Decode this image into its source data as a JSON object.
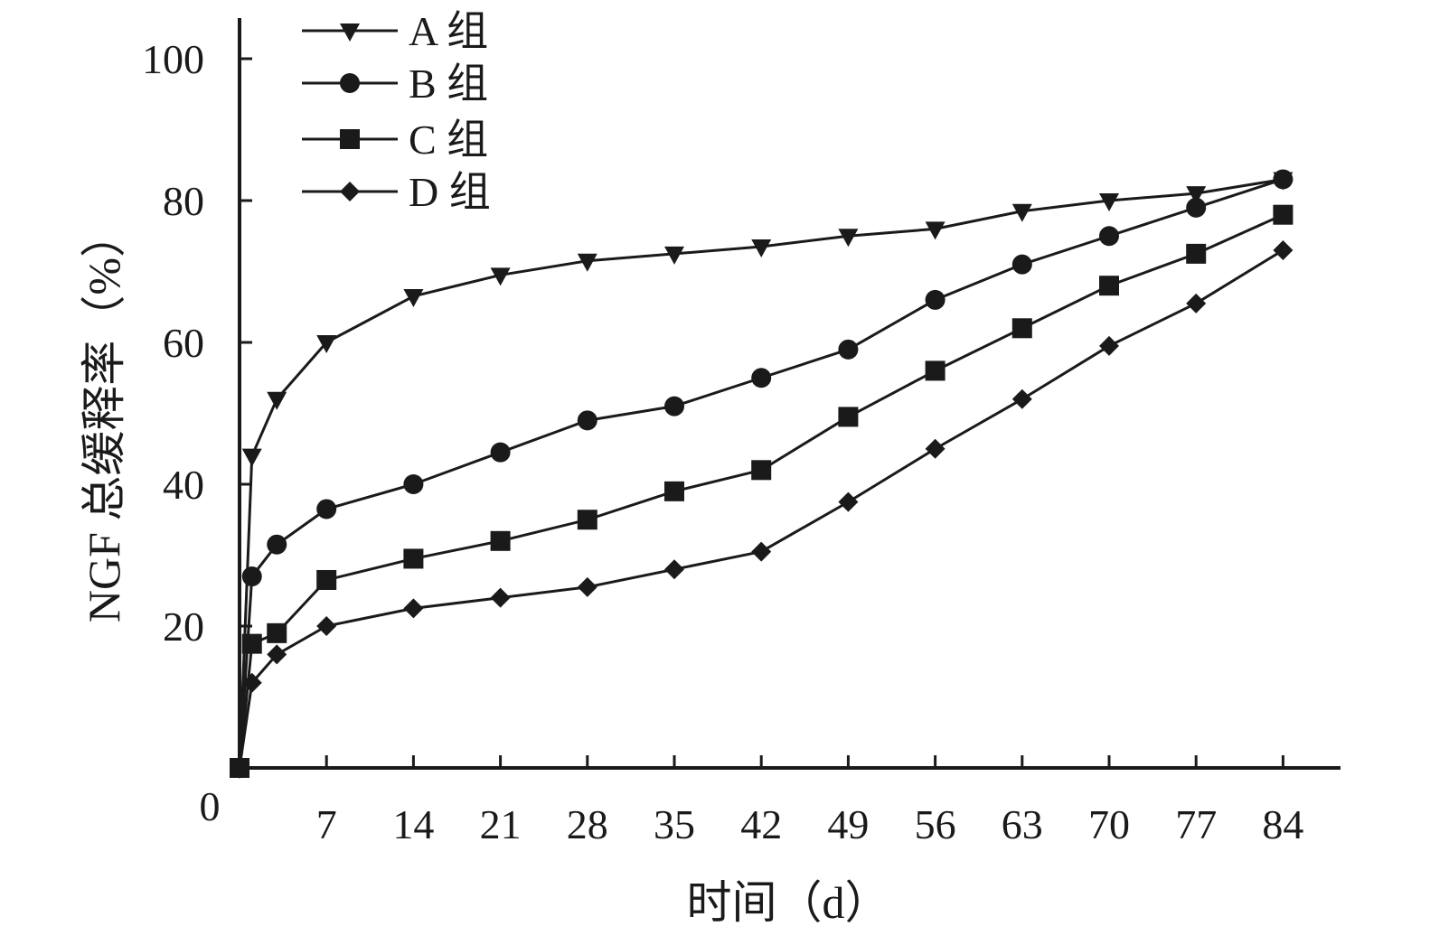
{
  "chart_data": {
    "type": "line",
    "title": "",
    "xlabel": "时间（d）",
    "ylabel": "NGF 总缓释率（%）",
    "x_ticks": [
      7,
      14,
      21,
      28,
      35,
      42,
      49,
      56,
      63,
      70,
      77,
      84
    ],
    "y_ticks": [
      20,
      40,
      60,
      80,
      100
    ],
    "origin_label": "0",
    "xlim": [
      0,
      89
    ],
    "ylim": [
      0,
      105
    ],
    "grid": false,
    "legend_position": "top-left",
    "colors": {
      "line": "#1a1a1a",
      "marker": "#1a1a1a"
    },
    "x": [
      0,
      1,
      3,
      7,
      14,
      21,
      28,
      35,
      42,
      49,
      56,
      63,
      70,
      77,
      84
    ],
    "series": [
      {
        "name": "A 组",
        "marker": "triangle-down",
        "values": [
          0,
          44,
          52,
          60,
          66.5,
          69.5,
          71.5,
          72.5,
          73.5,
          75,
          76,
          78.5,
          80,
          81,
          83
        ]
      },
      {
        "name": "B 组",
        "marker": "circle",
        "values": [
          0,
          27,
          31.5,
          36.5,
          40,
          44.5,
          49,
          51,
          55,
          59,
          66,
          71,
          75,
          79,
          83
        ]
      },
      {
        "name": "C 组",
        "marker": "square",
        "values": [
          0,
          17.5,
          19,
          26.5,
          29.5,
          32,
          35,
          39,
          42,
          49.5,
          56,
          62,
          68,
          72.5,
          78
        ]
      },
      {
        "name": "D 组",
        "marker": "diamond",
        "values": [
          0,
          12,
          16,
          20,
          22.5,
          24,
          25.5,
          28,
          30.5,
          37.5,
          45,
          52,
          59.5,
          65.5,
          73
        ]
      }
    ]
  }
}
